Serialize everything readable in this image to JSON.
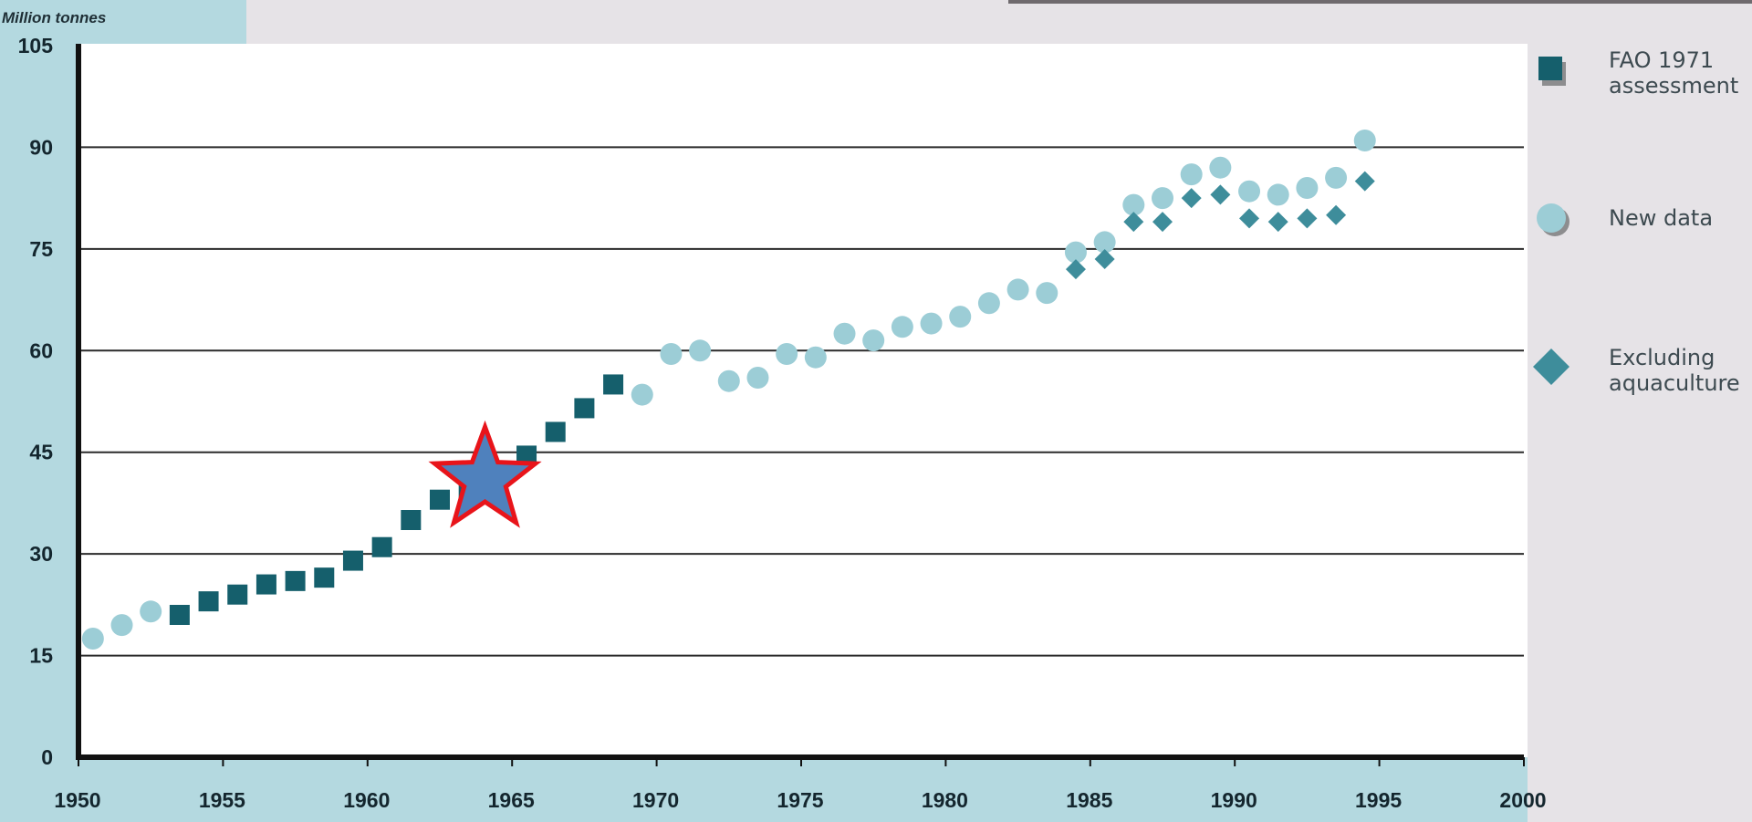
{
  "chart_data": {
    "type": "scatter",
    "title": "",
    "ylabel": "Million tonnes",
    "xlabel": "",
    "xlim": [
      1950,
      2000
    ],
    "ylim": [
      0,
      105
    ],
    "xticks": [
      1950,
      1955,
      1960,
      1965,
      1970,
      1975,
      1980,
      1985,
      1990,
      1995,
      2000
    ],
    "yticks": [
      0,
      15,
      30,
      45,
      60,
      75,
      90,
      105
    ],
    "grid": "horizontal",
    "legend_position": "right",
    "series": [
      {
        "name": "FAO 1971 assessment",
        "marker": "square",
        "color": "#155f6c",
        "points": [
          [
            1953.5,
            21
          ],
          [
            1954.5,
            23
          ],
          [
            1955.5,
            24
          ],
          [
            1956.5,
            25.5
          ],
          [
            1957.5,
            26
          ],
          [
            1958.5,
            26.5
          ],
          [
            1959.5,
            29
          ],
          [
            1960.5,
            31
          ],
          [
            1961.5,
            35
          ],
          [
            1962.5,
            38
          ],
          [
            1963.5,
            39.5
          ],
          [
            1964.5,
            42
          ],
          [
            1965.5,
            44.5
          ],
          [
            1966.5,
            48
          ],
          [
            1967.5,
            51.5
          ],
          [
            1968.5,
            55
          ]
        ]
      },
      {
        "name": "New data",
        "marker": "circle",
        "color": "#9ccdd6",
        "points": [
          [
            1950.5,
            17.5
          ],
          [
            1951.5,
            19.5
          ],
          [
            1952.5,
            21.5
          ],
          [
            1969.5,
            53.5
          ],
          [
            1970.5,
            59.5
          ],
          [
            1971.5,
            60
          ],
          [
            1972.5,
            55.5
          ],
          [
            1973.5,
            56
          ],
          [
            1974.5,
            59.5
          ],
          [
            1975.5,
            59
          ],
          [
            1976.5,
            62.5
          ],
          [
            1977.5,
            61.5
          ],
          [
            1978.5,
            63.5
          ],
          [
            1979.5,
            64
          ],
          [
            1980.5,
            65
          ],
          [
            1981.5,
            67
          ],
          [
            1982.5,
            69
          ],
          [
            1983.5,
            68.5
          ],
          [
            1984.5,
            74.5
          ],
          [
            1985.5,
            76
          ],
          [
            1986.5,
            81.5
          ],
          [
            1987.5,
            82.5
          ],
          [
            1988.5,
            86
          ],
          [
            1989.5,
            87
          ],
          [
            1990.5,
            83.5
          ],
          [
            1991.5,
            83
          ],
          [
            1992.5,
            84
          ],
          [
            1993.5,
            85.5
          ],
          [
            1994.5,
            91
          ]
        ]
      },
      {
        "name": "Excluding aquaculture",
        "marker": "diamond",
        "color": "#3e8d9b",
        "points": [
          [
            1984.5,
            72
          ],
          [
            1985.5,
            73.5
          ],
          [
            1986.5,
            79
          ],
          [
            1987.5,
            79
          ],
          [
            1988.5,
            82.5
          ],
          [
            1989.5,
            83
          ],
          [
            1990.5,
            79.5
          ],
          [
            1991.5,
            79
          ],
          [
            1992.5,
            79.5
          ],
          [
            1993.5,
            80
          ],
          [
            1994.5,
            85
          ]
        ]
      }
    ],
    "legend": [
      {
        "line1": "FAO 1971",
        "line2": "assessment",
        "marker": "square",
        "color": "#155f6c"
      },
      {
        "line1": "New data",
        "line2": "",
        "marker": "circle",
        "color": "#9ccdd6"
      },
      {
        "line1": "Excluding",
        "line2": "aquaculture",
        "marker": "diamond",
        "color": "#3e8d9b"
      }
    ],
    "annotation": {
      "type": "star",
      "at": [
        1964,
        42
      ],
      "fill": "#4f81bd",
      "stroke": "#e8141a"
    }
  }
}
